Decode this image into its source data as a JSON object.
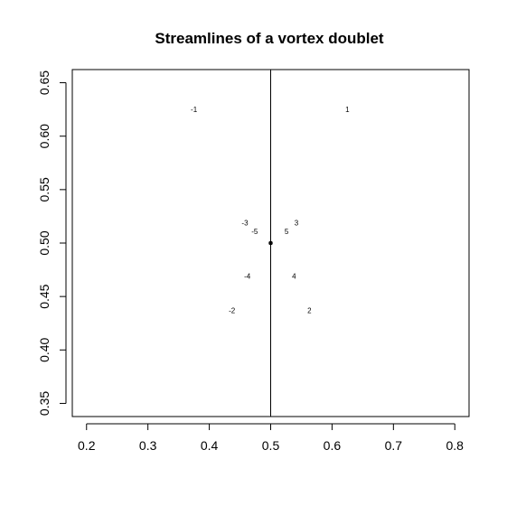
{
  "chart_data": {
    "type": "contour",
    "title": "Streamlines of a vortex doublet",
    "xlabel": "",
    "ylabel": "",
    "xlim": [
      0.2,
      0.8
    ],
    "ylim": [
      0.35,
      0.65
    ],
    "x_ticks": [
      "0.2",
      "0.3",
      "0.4",
      "0.5",
      "0.6",
      "0.7",
      "0.8"
    ],
    "y_ticks": [
      "0.35",
      "0.40",
      "0.45",
      "0.50",
      "0.55",
      "0.60",
      "0.65"
    ],
    "grid": false,
    "legend": "none",
    "line_color": "#000000",
    "doublet_center": [
      0.5,
      0.5
    ],
    "contour_levels": [
      -5,
      -4,
      -3,
      -2,
      -1,
      0,
      1,
      2,
      3,
      4,
      5
    ],
    "streamline_function": "psi = 0.0025 * (x - 0.5) / ((x - 0.5)^2 + (y - 0.5)^2)",
    "contour_labels": [
      {
        "text": "-1",
        "level": -1,
        "at": [
          0.375,
          0.625
        ]
      },
      {
        "text": "1",
        "level": 1,
        "at": [
          0.625,
          0.625
        ]
      },
      {
        "text": "-2",
        "level": -2,
        "at": [
          0.437,
          0.437
        ]
      },
      {
        "text": "2",
        "level": 2,
        "at": [
          0.563,
          0.437
        ]
      },
      {
        "text": "-3",
        "level": -3,
        "at": [
          0.458,
          0.519
        ]
      },
      {
        "text": "3",
        "level": 3,
        "at": [
          0.542,
          0.519
        ]
      },
      {
        "text": "-4",
        "level": -4,
        "at": [
          0.462,
          0.469
        ]
      },
      {
        "text": "4",
        "level": 4,
        "at": [
          0.538,
          0.469
        ]
      },
      {
        "text": "-5",
        "level": -5,
        "at": [
          0.474,
          0.511
        ]
      },
      {
        "text": "5",
        "level": 5,
        "at": [
          0.526,
          0.511
        ]
      }
    ]
  }
}
